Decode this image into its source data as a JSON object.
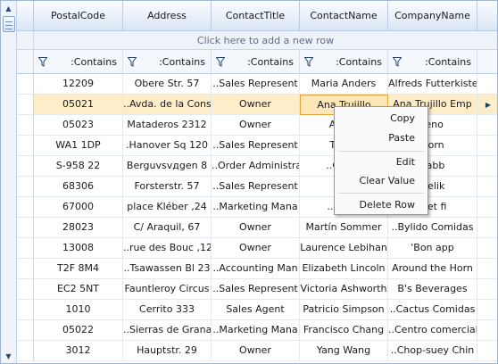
{
  "grid": {
    "columns": [
      "PostalCode",
      "Address",
      "ContactTitle",
      "ContactName",
      "CompanyName"
    ],
    "add_new_row": "Click here to add a new row",
    "filter_operator": ":Contains",
    "rows": [
      [
        "12209",
        "Obere Str. 57",
        "..Sales Represent",
        "Maria Anders",
        "Alfreds Futterkiste"
      ],
      [
        "05021",
        "..Avda. de la Cons",
        "Owner",
        "Ana Trujillo",
        "Ana Trujillo Emp"
      ],
      [
        "05023",
        "Mataderos  2312",
        "Owner",
        "Anton",
        "reno"
      ],
      [
        "WA1 1DP",
        ".Hanover Sq 120",
        "..Sales Represent",
        "Thom",
        "Horn"
      ],
      [
        "S-958 22",
        "Berguvsvдgen  8",
        "..Order Administra",
        "..Christ",
        "nabb"
      ],
      [
        "68306",
        "Forsterstr. 57",
        "..Sales Represent",
        "Han",
        "Delik"
      ],
      [
        "67000",
        "place Kléber ,24",
        "..Marketing Mana",
        "..Frédé",
        "e et fi"
      ],
      [
        "28023",
        "C/ Araquil, 67",
        "Owner",
        "Martín Sommer",
        "..Bylido Comidas"
      ],
      [
        "13008",
        "..rue des Bouc ,12",
        "Owner",
        "Laurence Lebihan",
        "'Bon app"
      ],
      [
        "T2F 8M4",
        "..Tsawassen Bl 23",
        "..Accounting Man",
        "Elizabeth Lincoln",
        "Around the Horn"
      ],
      [
        "EC2 5NT",
        "Fauntleroy Circus",
        "..Sales Represent",
        "Victoria Ashworth",
        "B's Beverages"
      ],
      [
        "1010",
        "Cerrito 333",
        "Sales Agent",
        "Patricio Simpson",
        "..Cactus Comidas"
      ],
      [
        "05022",
        "..Sierras de Grana",
        "..Marketing Mana",
        "Francisco Chang",
        "..Centro comercial"
      ],
      [
        "3012",
        "Hauptstr. 29",
        "Owner",
        "Yang Wang",
        "..Chop-suey Chin"
      ]
    ],
    "selected_row": 1,
    "active_column": 3
  },
  "context_menu": {
    "items": [
      "Copy",
      "Paste",
      "Edit",
      "Clear Value",
      "Delete Row"
    ]
  },
  "icons": {
    "scroll_up": "scroll-up-arrow",
    "scroll_down": "scroll-down-arrow",
    "filter": "funnel-icon",
    "current_row": "current-row-arrow"
  },
  "colors": {
    "header_border": "#b9cce5",
    "selected_row": "#fdeec9",
    "active_cell_border": "#e2a33b"
  }
}
